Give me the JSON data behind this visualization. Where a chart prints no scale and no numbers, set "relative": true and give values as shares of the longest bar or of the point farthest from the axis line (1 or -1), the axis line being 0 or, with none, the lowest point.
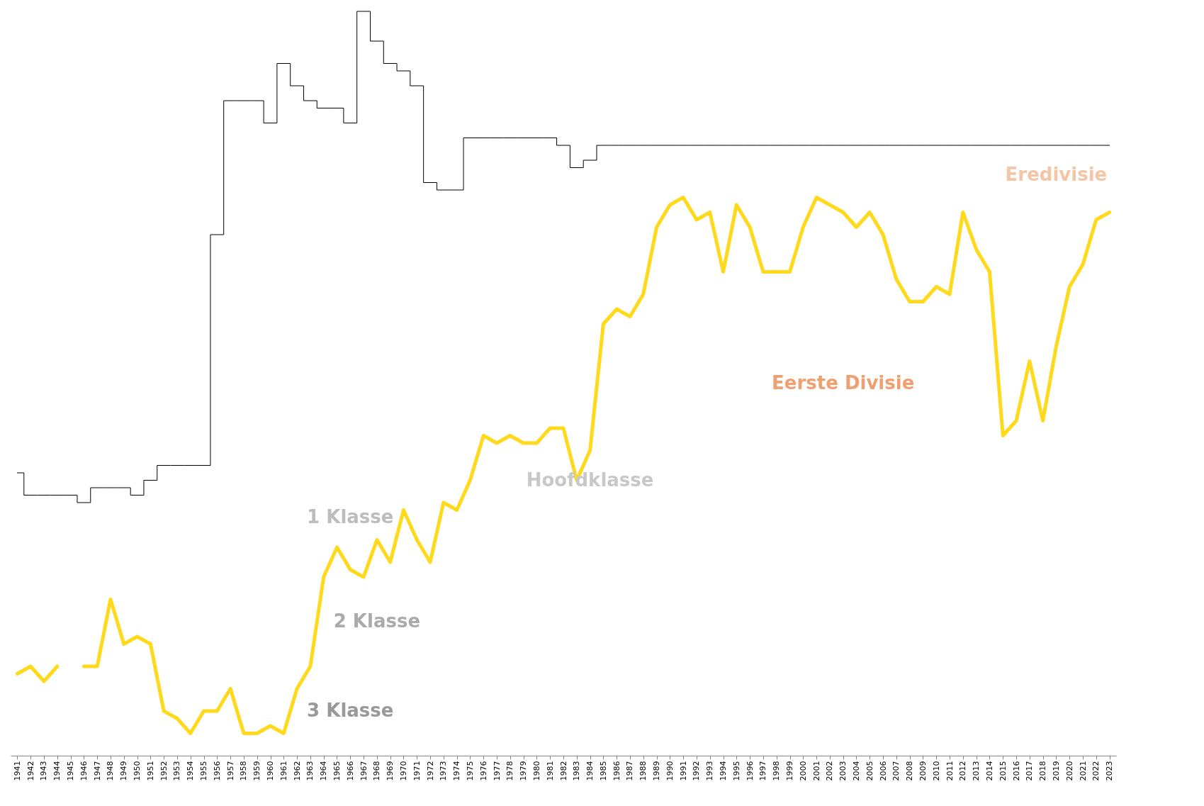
{
  "chart_data": {
    "type": "line",
    "relative": true,
    "categories": [
      "1941",
      "1942",
      "1943",
      "1944",
      "1945",
      "1946",
      "1947",
      "1948",
      "1949",
      "1950",
      "1951",
      "1952",
      "1953",
      "1954",
      "1955",
      "1956",
      "1957",
      "1958",
      "1959",
      "1960",
      "1961",
      "1962",
      "1963",
      "1964",
      "1965",
      "1966",
      "1967",
      "1968",
      "1969",
      "1970",
      "1971",
      "1972",
      "1973",
      "1974",
      "1975",
      "1976",
      "1977",
      "1978",
      "1979",
      "1980",
      "1981",
      "1982",
      "1983",
      "1984",
      "1985",
      "1986",
      "1987",
      "1988",
      "1989",
      "1990",
      "1991",
      "1992",
      "1993",
      "1994",
      "1995",
      "1996",
      "1997",
      "1998",
      "1999",
      "2000",
      "2001",
      "2002",
      "2003",
      "2004",
      "2005",
      "2006",
      "2007",
      "2008",
      "2009",
      "2010",
      "2011",
      "2012",
      "2013",
      "2014",
      "2015",
      "2016",
      "2017",
      "2018",
      "2019",
      "2020",
      "2021",
      "2022",
      "2023"
    ],
    "series": [
      {
        "type": "step",
        "color": "#000000",
        "values": [
          0.38,
          0.35,
          0.35,
          0.35,
          0.35,
          0.34,
          0.36,
          0.36,
          0.36,
          0.35,
          0.37,
          0.39,
          0.39,
          0.39,
          0.39,
          0.7,
          0.88,
          0.88,
          0.88,
          0.85,
          0.93,
          0.9,
          0.88,
          0.87,
          0.87,
          0.85,
          1,
          0.96,
          0.93,
          0.92,
          0.9,
          0.77,
          0.76,
          0.76,
          0.83,
          0.83,
          0.83,
          0.83,
          0.83,
          0.83,
          0.83,
          0.82,
          0.79,
          0.8,
          0.82,
          0.82,
          0.82,
          0.82,
          0.82,
          0.82,
          0.82,
          0.82,
          0.82,
          0.82,
          0.82,
          0.82,
          0.82,
          0.82,
          0.82,
          0.82,
          0.82,
          0.82,
          0.82,
          0.82,
          0.82,
          0.82,
          0.82,
          0.82,
          0.82,
          0.82,
          0.82,
          0.82,
          0.82,
          0.82,
          0.82,
          0.82,
          0.82,
          0.82,
          0.82,
          0.82,
          0.82,
          0.82,
          0.82
        ]
      },
      {
        "type": "line",
        "color": "#ffd91a",
        "values": [
          0.11,
          0.12,
          0.1,
          0.12,
          null,
          0.12,
          0.12,
          0.21,
          0.15,
          0.16,
          0.15,
          0.06,
          0.05,
          0.03,
          0.06,
          0.06,
          0.09,
          0.03,
          0.03,
          0.04,
          0.03,
          0.09,
          0.12,
          0.24,
          0.28,
          0.25,
          0.24,
          0.29,
          0.26,
          0.33,
          0.29,
          0.26,
          0.34,
          0.33,
          0.37,
          0.43,
          0.42,
          0.43,
          0.42,
          0.42,
          0.44,
          0.44,
          0.37,
          0.41,
          0.58,
          0.6,
          0.59,
          0.62,
          0.71,
          0.74,
          0.75,
          0.72,
          0.73,
          0.65,
          0.74,
          0.71,
          0.65,
          0.65,
          0.65,
          0.71,
          0.75,
          0.74,
          0.73,
          0.71,
          0.73,
          0.7,
          0.64,
          0.61,
          0.61,
          0.63,
          0.62,
          0.73,
          0.68,
          0.65,
          0.43,
          0.45,
          0.53,
          0.45,
          0.55,
          0.63,
          0.66,
          0.72,
          0.73
        ]
      }
    ],
    "annotations": [
      "Eredivisie",
      "Eerste Divisie",
      "Hoofdklasse",
      "1 Klasse",
      "2 Klasse",
      "3 Klasse"
    ]
  }
}
